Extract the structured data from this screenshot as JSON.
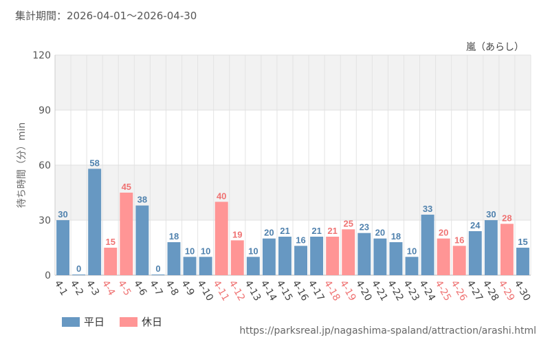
{
  "header": {
    "period": "集計期間：2026-04-01〜2026-04-30"
  },
  "legend": {
    "weekday": "平日",
    "holiday": "休日"
  },
  "source_url": "https://parksreal.jp/nagashima-spaland/attraction/arashi.html",
  "colors": {
    "weekday": "#6798c2",
    "holiday": "#ff9595",
    "weekday_label": "#4f81ad",
    "holiday_label": "#ef7373"
  },
  "chart_data": {
    "type": "bar",
    "title": "嵐（あらし）",
    "ylabel": "待ち時間（分）min",
    "ylim": [
      0,
      120
    ],
    "yticks": [
      0,
      30,
      60,
      90,
      120
    ],
    "grid": true,
    "legend_position": "bottom-left",
    "categories": [
      "4-1",
      "4-2",
      "4-3",
      "4-4",
      "4-5",
      "4-6",
      "4-7",
      "4-8",
      "4-9",
      "4-10",
      "4-11",
      "4-12",
      "4-13",
      "4-14",
      "4-15",
      "4-16",
      "4-17",
      "4-18",
      "4-19",
      "4-20",
      "4-21",
      "4-22",
      "4-23",
      "4-24",
      "4-25",
      "4-26",
      "4-27",
      "4-28",
      "4-29",
      "4-30"
    ],
    "values": [
      30,
      0,
      58,
      15,
      45,
      38,
      0,
      18,
      10,
      10,
      40,
      19,
      10,
      20,
      21,
      16,
      21,
      21,
      25,
      23,
      20,
      18,
      10,
      33,
      20,
      16,
      24,
      30,
      28,
      15
    ],
    "day_type": [
      "平日",
      "平日",
      "平日",
      "休日",
      "休日",
      "平日",
      "平日",
      "平日",
      "平日",
      "平日",
      "休日",
      "休日",
      "平日",
      "平日",
      "平日",
      "平日",
      "平日",
      "休日",
      "休日",
      "平日",
      "平日",
      "平日",
      "平日",
      "平日",
      "休日",
      "休日",
      "平日",
      "平日",
      "休日",
      "平日"
    ]
  }
}
